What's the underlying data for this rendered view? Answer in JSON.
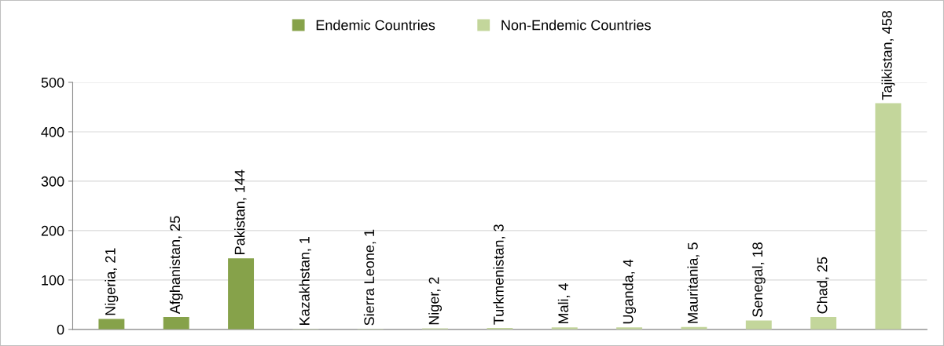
{
  "chart_data": {
    "type": "bar",
    "categories": [
      null,
      null,
      null,
      null,
      null,
      null,
      null,
      null,
      null,
      null,
      null,
      null,
      null
    ],
    "series": [
      {
        "name": "Endemic Countries",
        "color": "#86a24a",
        "values": [
          21,
          25,
          144,
          null,
          null,
          null,
          null,
          null,
          null,
          null,
          null,
          null,
          null
        ],
        "value_labels": [
          "Nigeria, 21",
          "Afghanistan, 25",
          "Pakistan, 144",
          null,
          null,
          null,
          null,
          null,
          null,
          null,
          null,
          null,
          null
        ]
      },
      {
        "name": "Non-Endemic Countries",
        "color": "#c3d69b",
        "values": [
          null,
          null,
          null,
          1,
          1,
          2,
          3,
          4,
          4,
          5,
          18,
          25,
          458
        ],
        "value_labels": [
          null,
          null,
          null,
          "Kazakhstan, 1",
          "Sierra Leone, 1",
          "Niger, 2",
          "Turkmenistan, 3",
          "Mali, 4",
          "Uganda, 4",
          "Mauritania, 5",
          "Senegal, 18",
          "Chad, 25",
          "Tajikistan, 458"
        ]
      }
    ],
    "ylim": [
      0,
      500
    ],
    "yticks": [
      0,
      100,
      200,
      300,
      400,
      500
    ],
    "grid": "y",
    "legend": "top",
    "tick_labels": "y"
  }
}
